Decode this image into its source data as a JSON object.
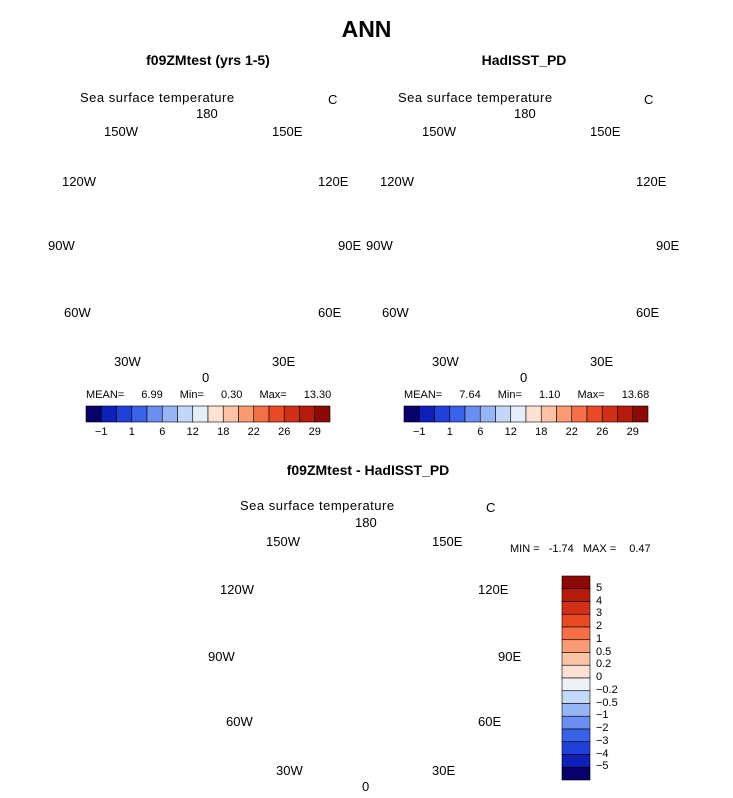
{
  "title": "ANN",
  "colors": {
    "land": "#ffffff",
    "coast": "#000000",
    "bluePale": "#c6dcf5",
    "blueLight": "#a8c9f2",
    "blueMid": "#7ba7ef",
    "blueStrong": "#4e7fe6",
    "blueDeep": "#3b6ce3",
    "peach": "#fbd8c3",
    "peachLight": "#fde7da"
  },
  "panels": [
    {
      "title": "f09ZMtest (yrs 1-5)",
      "variable": "Sea surface temperature",
      "units": "C",
      "stats": {
        "mean_label": "MEAN=",
        "mean": "6.99",
        "min_label": "Min=",
        "min": "0.30",
        "max_label": "Max=",
        "max": "13.30"
      }
    },
    {
      "title": "HadISST_PD",
      "variable": "Sea surface temperature",
      "units": "C",
      "stats": {
        "mean_label": "MEAN=",
        "mean": "7.64",
        "min_label": "Min=",
        "min": "1.10",
        "max_label": "Max=",
        "max": "13.68"
      }
    },
    {
      "title": "f09ZMtest - HadISST_PD",
      "variable": "Sea surface temperature",
      "units": "C",
      "stats": {
        "min_label": "MIN =",
        "min": "-1.74",
        "max_label": "MAX =",
        "max": "0.47"
      }
    }
  ],
  "longitude_labels": [
    "180",
    "150E",
    "120E",
    "90E",
    "60E",
    "30E",
    "0",
    "30W",
    "60W",
    "90W",
    "120W",
    "150W"
  ],
  "abs_colorbar": {
    "colors": [
      "#08006b",
      "#0d1fb8",
      "#1f40d9",
      "#3a62e8",
      "#6b8ff0",
      "#97b5f4",
      "#c3d7f7",
      "#e6eefa",
      "#fde1d2",
      "#fbc2a5",
      "#f99a73",
      "#f46f45",
      "#e84a24",
      "#d22f14",
      "#b51a0b",
      "#8c0a05"
    ],
    "tick_labels": [
      "-1",
      "1",
      "6",
      "12",
      "18",
      "22",
      "26",
      "29"
    ]
  },
  "diff_colorbar": {
    "colors": [
      "#8c0a05",
      "#b51a0b",
      "#d22f14",
      "#e84a24",
      "#f46f45",
      "#f99a73",
      "#fbc2a5",
      "#fde1d2",
      "#eef2f8",
      "#c3d7f7",
      "#97b5f4",
      "#6b8ff0",
      "#3a62e8",
      "#1f40d9",
      "#0d1fb8",
      "#08006b"
    ],
    "tick_labels": [
      "5",
      "4",
      "3",
      "2",
      "1",
      "0.5",
      "0.2",
      "0",
      "-0.2",
      "-0.5",
      "-1",
      "-2",
      "-3",
      "-4",
      "-5"
    ]
  }
}
